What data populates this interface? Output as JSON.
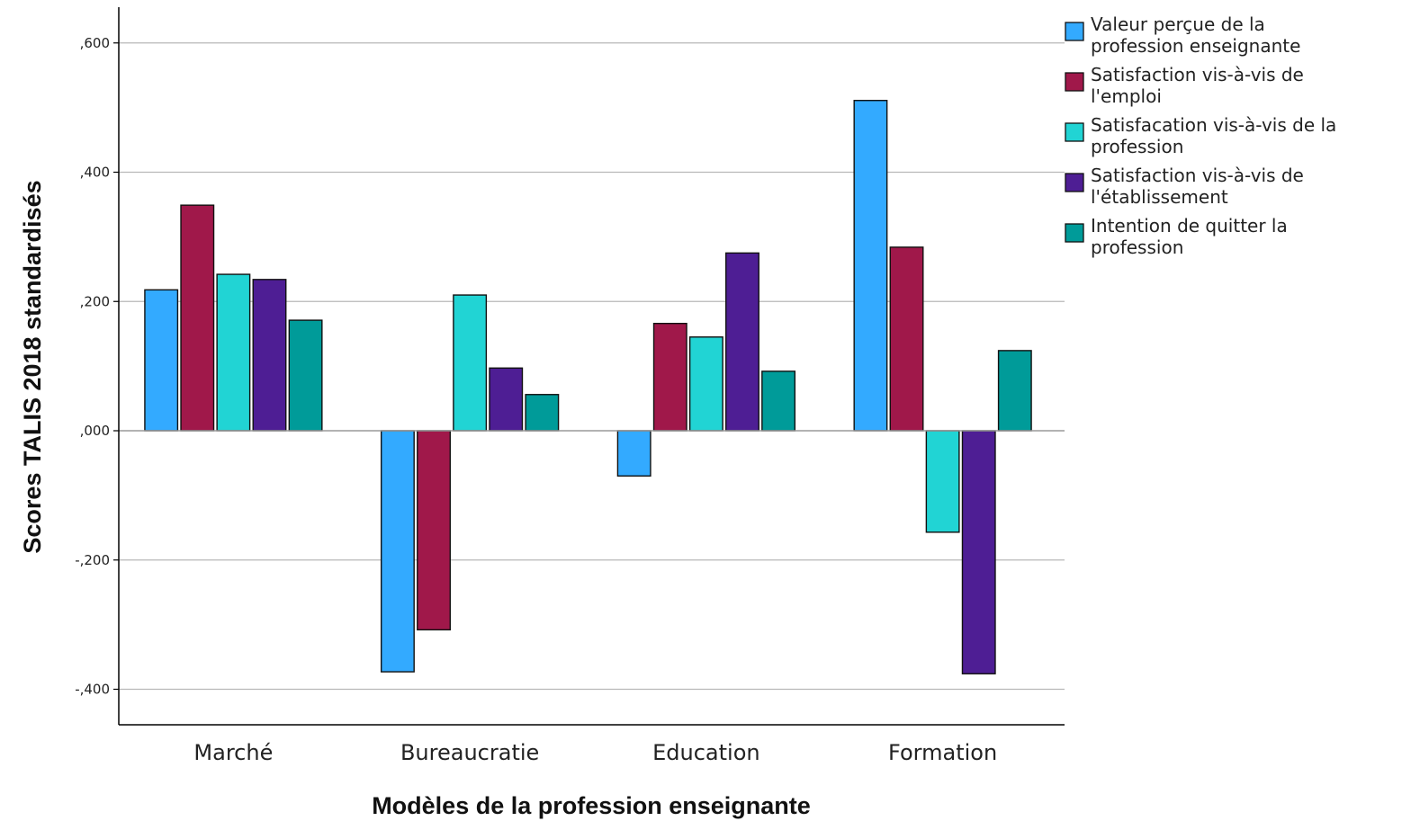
{
  "chart_data": {
    "type": "bar",
    "categories": [
      "Marché",
      "Bureaucratie",
      "Education",
      "Formation"
    ],
    "series": [
      {
        "name": "Valeur perçue de la profession enseignante",
        "color": "#33aaff",
        "values": [
          0.218,
          -0.373,
          -0.07,
          0.511
        ]
      },
      {
        "name": "Satisfaction vis-à-vis de l'emploi",
        "color": "#a0184a",
        "values": [
          0.349,
          -0.308,
          0.166,
          0.284
        ]
      },
      {
        "name": "Satisfacation vis-à-vis de la profession",
        "color": "#21d4d4",
        "values": [
          0.242,
          0.21,
          0.145,
          -0.157
        ]
      },
      {
        "name": "Satisfaction vis-à-vis de l'établissement",
        "color": "#4e1e94",
        "values": [
          0.234,
          0.097,
          0.275,
          -0.376
        ]
      },
      {
        "name": "Intention de quitter la profession",
        "color": "#009b99",
        "values": [
          0.171,
          0.056,
          0.092,
          0.124
        ]
      }
    ],
    "xlabel": "Modèles de la profession enseignante",
    "ylabel": "Scores TALIS 2018 standardisés",
    "ylim": [
      -0.45,
      0.6
    ],
    "yticks": [
      0.6,
      0.4,
      0.2,
      0.0,
      -0.2,
      -0.4
    ],
    "ytick_labels": [
      ",600",
      ",400",
      ",200",
      ",000",
      "-,200",
      "-,400"
    ],
    "grid": true,
    "legend_position": "top-right"
  }
}
